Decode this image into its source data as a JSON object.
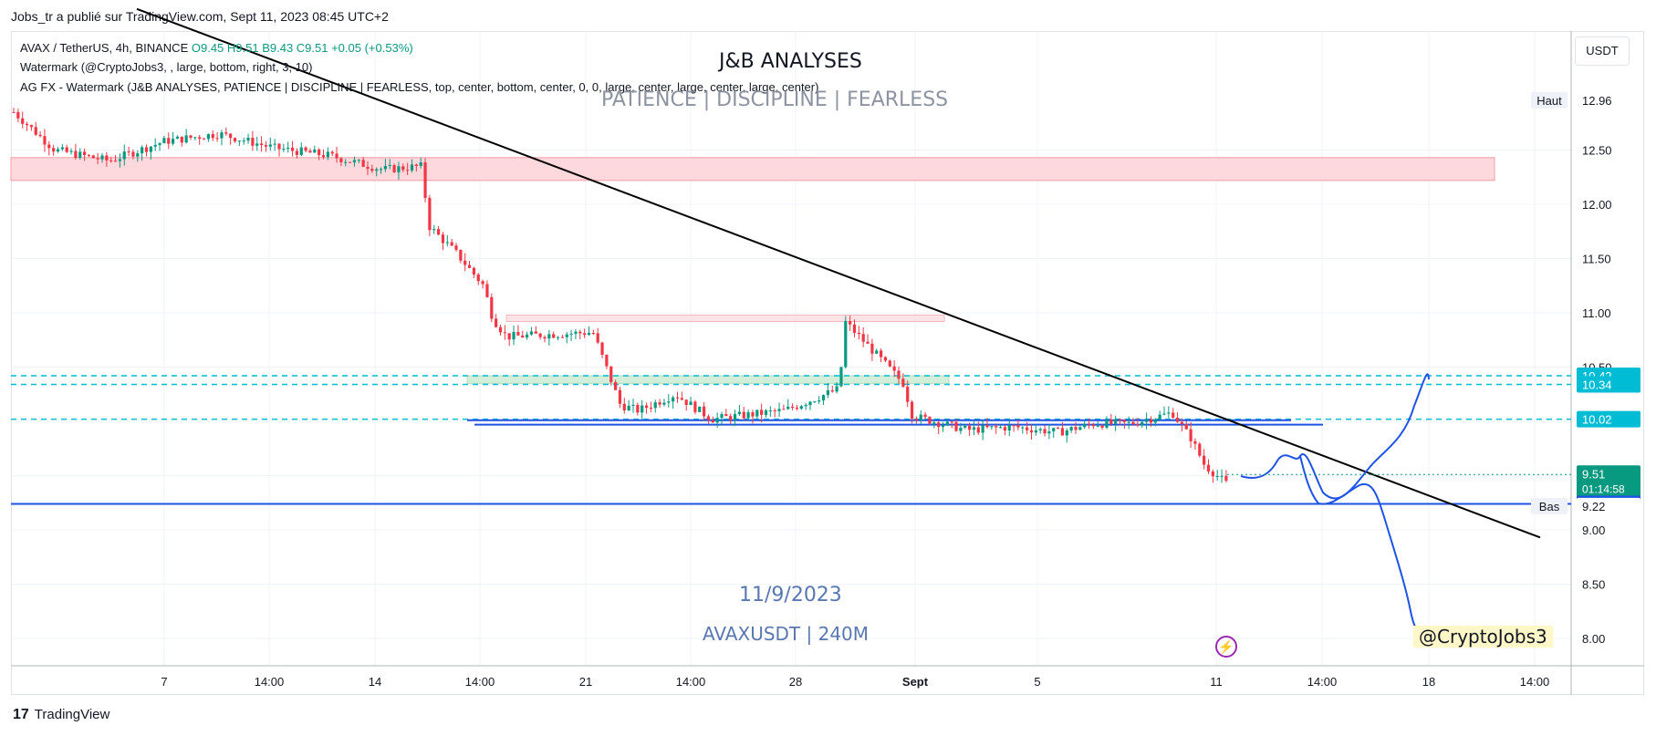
{
  "header": {
    "published_by": "Jobs_tr a publié sur TradingView.com, Sept 11, 2023 08:45 UTC+2"
  },
  "legend": {
    "symbol": "AVAX / TetherUS, 4h, BINANCE",
    "ohlc": "O9.45  H9.51  B9.43  C9.51  +0.05 (+0.53%)",
    "watermark1": "Watermark (@CryptoJobs3, , large, bottom, right, 3, 10)",
    "watermark2": "AG FX - Watermark (J&B ANALYSES, PATIENCE  |  DISCIPLINE  |  FEARLESS, top, center, bottom, center, 0, 0, large, center, large, center, large, center)"
  },
  "watermark": {
    "title": "J&B ANALYSES",
    "subtitle": "PATIENCE  |  DISCIPLINE  |  FEARLESS",
    "date": "11/9/2023",
    "pair": "AVAXUSDT | 240M",
    "handle": "@CryptoJobs3"
  },
  "toolbar": {
    "unit": "USDT"
  },
  "footer": {
    "brand": "TradingView",
    "logo_glyph": "17"
  },
  "icons": {
    "bolt": "⚡"
  },
  "colors": {
    "up": "#089981",
    "down": "#f23645",
    "blue": "#1e53e5",
    "cyan": "#00bcd4",
    "trendline": "#000000",
    "supply_zone": "#fdd8dc",
    "demand_zone": "#d3efd9",
    "watermark": "#5a77b0"
  },
  "chart_data": {
    "type": "candlestick",
    "symbol": "AVAXUSDT",
    "interval": "4h",
    "y_ticks": [
      8.0,
      8.5,
      9.0,
      9.5,
      10.0,
      10.5,
      11.0,
      11.5,
      12.0,
      12.5
    ],
    "x_tick_labels": [
      "7",
      "14:00",
      "14",
      "14:00",
      "21",
      "14:00",
      "28",
      "Sept",
      "5",
      "11",
      "14:00",
      "18",
      "14:00"
    ],
    "price_labels": [
      {
        "name": "Haut",
        "value": "12.96"
      },
      {
        "name": "",
        "value": "10.42"
      },
      {
        "name": "",
        "value": "10.34"
      },
      {
        "name": "",
        "value": "10.02"
      },
      {
        "name": "",
        "value": "9.51",
        "sub": "01:14:58"
      },
      {
        "name": "",
        "value": "9.24"
      },
      {
        "name": "Bas",
        "value": "9.22"
      }
    ],
    "horizontal_levels": [
      {
        "value": 10.42,
        "style": "dashed",
        "color": "cyan"
      },
      {
        "value": 10.34,
        "style": "dashed",
        "color": "cyan"
      },
      {
        "value": 10.02,
        "style": "dashed",
        "color": "cyan"
      },
      {
        "value": 9.24,
        "style": "solid",
        "color": "blue"
      }
    ],
    "zones": [
      {
        "kind": "supply",
        "from": 12.22,
        "to": 12.43
      },
      {
        "kind": "resistance",
        "from": 10.92,
        "to": 10.98
      },
      {
        "kind": "support",
        "from": 10.35,
        "to": 10.42
      }
    ],
    "trendline": {
      "from": 13.8,
      "to": 8.93
    },
    "ohlc_summary": {
      "open": 9.45,
      "high": 9.51,
      "low": 9.43,
      "close": 9.51,
      "change": 0.05,
      "change_pct": 0.53
    }
  }
}
